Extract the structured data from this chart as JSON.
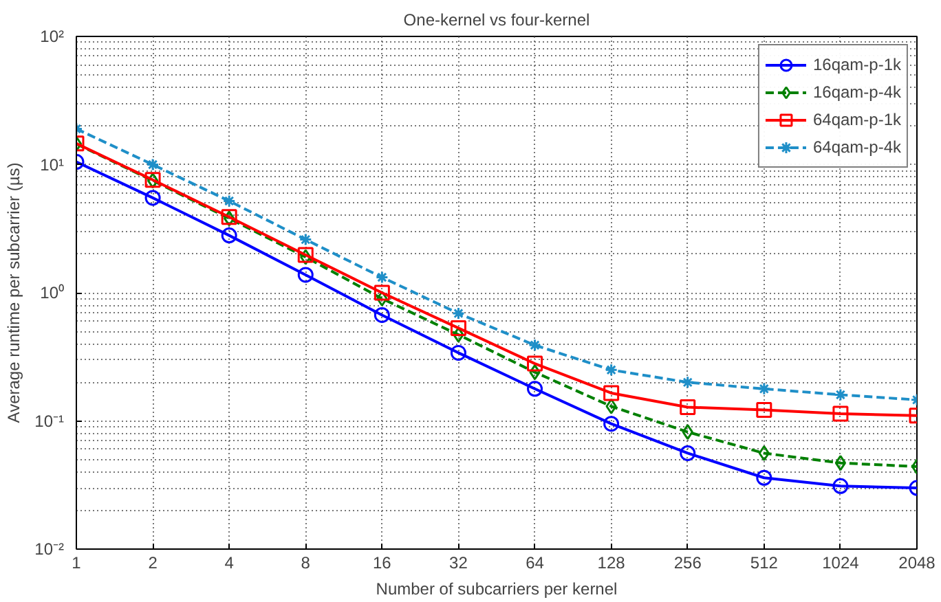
{
  "chart_data": {
    "type": "line",
    "title": "One-kernel vs four-kernel",
    "xlabel": "Number of subcarriers per kernel",
    "ylabel": "Average runtime per subcarrier (µs)",
    "log": "xy",
    "x": [
      1,
      2,
      4,
      8,
      16,
      32,
      64,
      128,
      256,
      512,
      1024,
      2048
    ],
    "xlim": [
      1,
      2048
    ],
    "xticks": [
      1,
      2,
      4,
      8,
      16,
      32,
      64,
      128,
      256,
      512,
      1024,
      2048
    ],
    "ylim": [
      0.01,
      100
    ],
    "yticks": [
      {
        "value": 0.01,
        "label": "10⁻²"
      },
      {
        "value": 0.1,
        "label": "10⁻¹"
      },
      {
        "value": 1,
        "label": "10⁰"
      },
      {
        "value": 10,
        "label": "10¹"
      },
      {
        "value": 100,
        "label": "10²"
      }
    ],
    "grid": true,
    "legend": "top right",
    "series": [
      {
        "name": "16qam-p-1k",
        "color": "#0000ff",
        "marker": "circle",
        "line_style": "solid",
        "values": [
          10.5,
          5.5,
          2.8,
          1.38,
          0.67,
          0.34,
          0.178,
          0.095,
          0.056,
          0.036,
          0.031,
          0.03
        ]
      },
      {
        "name": "16qam-p-4k",
        "color": "#008000",
        "marker": "diamond",
        "line_style": "dashed",
        "values": [
          14.5,
          7.5,
          3.8,
          1.9,
          0.9,
          0.47,
          0.24,
          0.13,
          0.082,
          0.056,
          0.047,
          0.044
        ]
      },
      {
        "name": "64qam-p-1k",
        "color": "#ff0000",
        "marker": "square",
        "line_style": "solid",
        "values": [
          14.6,
          7.6,
          3.9,
          1.97,
          1.0,
          0.53,
          0.28,
          0.165,
          0.128,
          0.122,
          0.114,
          0.11
        ]
      },
      {
        "name": "64qam-p-4k",
        "color": "#1f8fc8",
        "marker": "cross",
        "line_style": "dashed",
        "values": [
          19,
          10,
          5.2,
          2.6,
          1.32,
          0.69,
          0.39,
          0.25,
          0.2,
          0.178,
          0.16,
          0.146
        ]
      }
    ]
  }
}
